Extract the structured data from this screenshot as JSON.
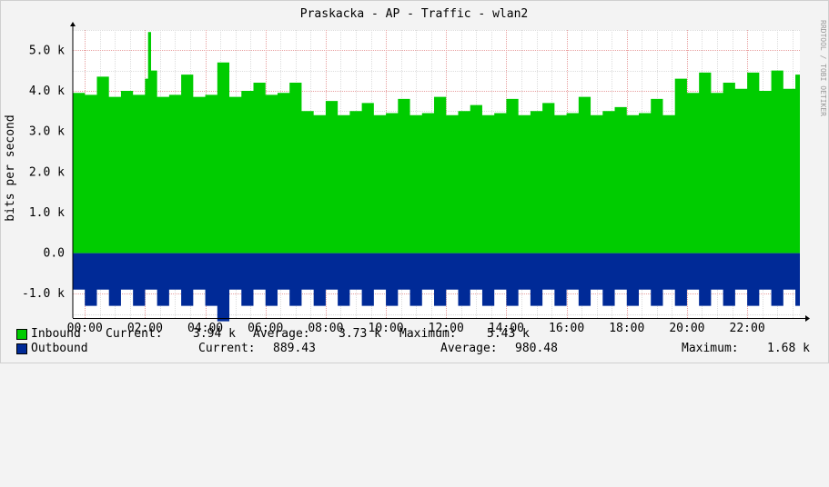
{
  "chart_data": {
    "type": "area",
    "title": "Praskacka - AP - Traffic - wlan2",
    "ylabel": "bits per second",
    "watermark": "RRDTOOL / TOBI OETIKER",
    "ylim": [
      -1600,
      5500
    ],
    "y_ticks": [
      {
        "value": 5000,
        "label": "5.0 k"
      },
      {
        "value": 4000,
        "label": "4.0 k"
      },
      {
        "value": 3000,
        "label": "3.0 k"
      },
      {
        "value": 2000,
        "label": "2.0 k"
      },
      {
        "value": 1000,
        "label": "1.0 k"
      },
      {
        "value": 0,
        "label": "0.0"
      },
      {
        "value": -1000,
        "label": "-1.0 k"
      }
    ],
    "x_range_hours": [
      -0.4,
      23.75
    ],
    "x_ticks": [
      {
        "hour": 0,
        "label": "00:00"
      },
      {
        "hour": 2,
        "label": "02:00"
      },
      {
        "hour": 4,
        "label": "04:00"
      },
      {
        "hour": 6,
        "label": "06:00"
      },
      {
        "hour": 8,
        "label": "08:00"
      },
      {
        "hour": 10,
        "label": "10:00"
      },
      {
        "hour": 12,
        "label": "12:00"
      },
      {
        "hour": 14,
        "label": "14:00"
      },
      {
        "hour": 16,
        "label": "16:00"
      },
      {
        "hour": 18,
        "label": "18:00"
      },
      {
        "hour": 20,
        "label": "20:00"
      },
      {
        "hour": 22,
        "label": "22:00"
      }
    ],
    "grid": true,
    "colors": {
      "inbound": "#00cc00",
      "outbound": "#002a97",
      "background": "#f3f3f3",
      "canvas": "#ffffff",
      "minor_grid": "#dddddd",
      "major_grid": "#e8a0a0"
    },
    "series": [
      {
        "name": "Inbound",
        "x": [
          -0.4,
          0.0,
          0.4,
          0.8,
          1.2,
          1.6,
          2.0,
          2.1,
          2.2,
          2.4,
          2.8,
          3.2,
          3.6,
          4.0,
          4.4,
          4.8,
          5.2,
          5.6,
          6.0,
          6.4,
          6.8,
          7.2,
          7.6,
          8.0,
          8.4,
          8.8,
          9.2,
          9.6,
          10.0,
          10.4,
          10.8,
          11.2,
          11.6,
          12.0,
          12.4,
          12.8,
          13.2,
          13.6,
          14.0,
          14.4,
          14.8,
          15.2,
          15.6,
          16.0,
          16.4,
          16.8,
          17.2,
          17.6,
          18.0,
          18.4,
          18.8,
          19.2,
          19.6,
          20.0,
          20.4,
          20.8,
          21.2,
          21.6,
          22.0,
          22.4,
          22.8,
          23.2,
          23.6,
          23.75
        ],
        "values": [
          3950,
          3900,
          4350,
          3850,
          4000,
          3900,
          4300,
          5450,
          4500,
          3850,
          3900,
          4400,
          3850,
          3900,
          4700,
          3850,
          4000,
          4200,
          3900,
          3950,
          4200,
          3500,
          3400,
          3750,
          3400,
          3500,
          3700,
          3400,
          3450,
          3800,
          3400,
          3450,
          3850,
          3400,
          3500,
          3650,
          3400,
          3450,
          3800,
          3400,
          3500,
          3700,
          3400,
          3450,
          3850,
          3400,
          3500,
          3600,
          3400,
          3450,
          3800,
          3400,
          4300,
          3950,
          4450,
          3950,
          4200,
          4050,
          4450,
          4000,
          4500,
          4050,
          4400,
          3900
        ],
        "current": "3.94 k",
        "average": "3.73 k",
        "maximum": "5.43 k"
      },
      {
        "name": "Outbound",
        "x": [
          -0.4,
          0.0,
          0.4,
          0.8,
          1.2,
          1.6,
          2.0,
          2.4,
          2.8,
          3.2,
          3.6,
          4.0,
          4.4,
          4.8,
          5.2,
          5.6,
          6.0,
          6.4,
          6.8,
          7.2,
          7.6,
          8.0,
          8.4,
          8.8,
          9.2,
          9.6,
          10.0,
          10.4,
          10.8,
          11.2,
          11.6,
          12.0,
          12.4,
          12.8,
          13.2,
          13.6,
          14.0,
          14.4,
          14.8,
          15.2,
          15.6,
          16.0,
          16.4,
          16.8,
          17.2,
          17.6,
          18.0,
          18.4,
          18.8,
          19.2,
          19.6,
          20.0,
          20.4,
          20.8,
          21.2,
          21.6,
          22.0,
          22.4,
          22.8,
          23.2,
          23.6,
          23.75
        ],
        "values": [
          -900,
          -1300,
          -900,
          -1300,
          -900,
          -1300,
          -900,
          -1300,
          -900,
          -1300,
          -900,
          -1300,
          -1680,
          -900,
          -1300,
          -900,
          -1300,
          -900,
          -1300,
          -900,
          -1300,
          -900,
          -1300,
          -900,
          -1300,
          -900,
          -1300,
          -900,
          -1300,
          -900,
          -1300,
          -900,
          -1300,
          -900,
          -1300,
          -900,
          -1300,
          -900,
          -1300,
          -900,
          -1300,
          -900,
          -1300,
          -900,
          -1300,
          -900,
          -1300,
          -900,
          -1300,
          -900,
          -1300,
          -900,
          -1300,
          -900,
          -1300,
          -900,
          -1300,
          -900,
          -1300,
          -900,
          -1300,
          -900
        ],
        "current": "889.43",
        "average": "980.48",
        "maximum": "1.68 k"
      }
    ]
  },
  "legend": {
    "current_label": "Current:",
    "average_label": "Average:",
    "maximum_label": "Maximum:"
  }
}
